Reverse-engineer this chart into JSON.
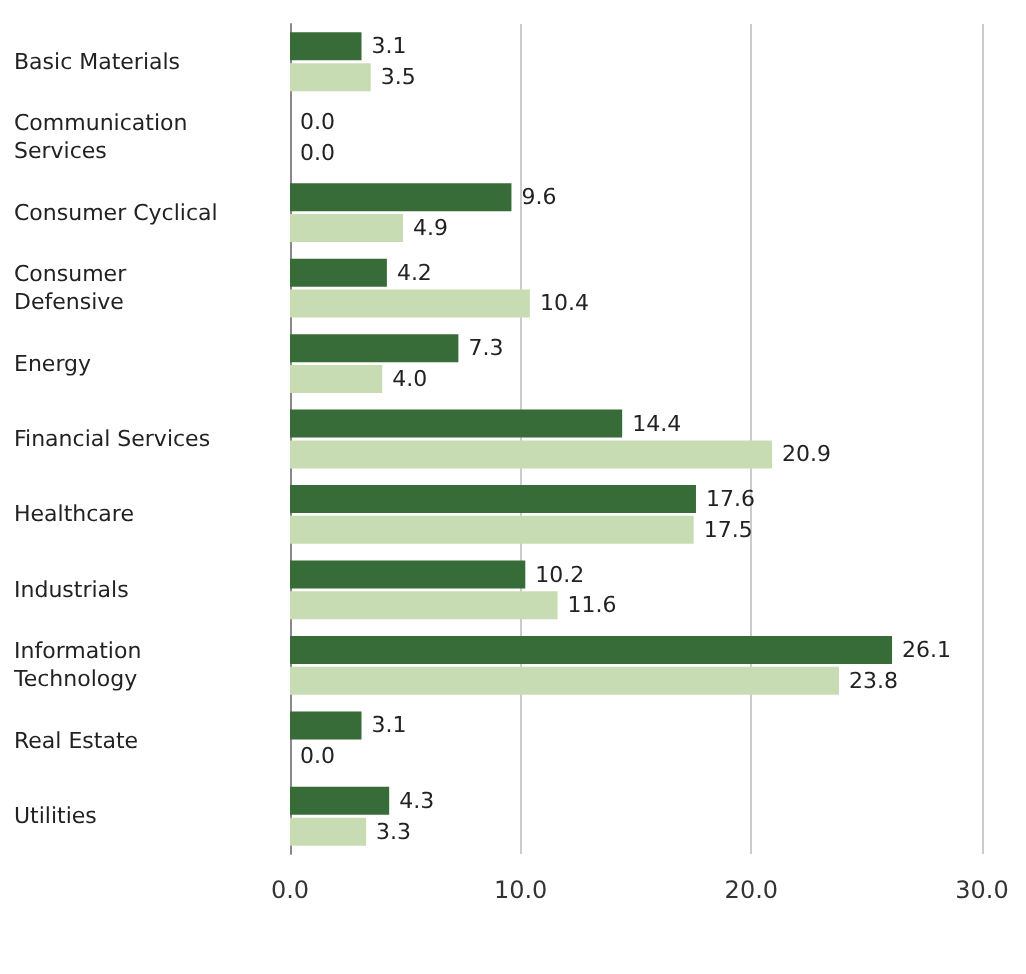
{
  "chart_data": {
    "type": "bar",
    "orientation": "horizontal",
    "categories": [
      "Basic Materials",
      "Communication Services",
      "Consumer Cyclical",
      "Consumer Defensive",
      "Energy",
      "Financial Services",
      "Healthcare",
      "Industrials",
      "Information Technology",
      "Real Estate",
      "Utilities"
    ],
    "series": [
      {
        "color": "#376b37",
        "values": [
          3.1,
          0.0,
          9.6,
          4.2,
          7.3,
          14.4,
          17.6,
          10.2,
          26.1,
          3.1,
          4.3
        ],
        "value_labels": [
          "3.1",
          "0.0",
          "9.6",
          "4.2",
          "7.3",
          "14.4",
          "17.6",
          "10.2",
          "26.1",
          "3.1",
          "4.3"
        ]
      },
      {
        "color": "#c8dcb4",
        "values": [
          3.5,
          0.0,
          4.9,
          10.4,
          4.0,
          20.9,
          17.5,
          11.6,
          23.8,
          0.0,
          3.3
        ],
        "value_labels": [
          "3.5",
          "0.0",
          "4.9",
          "10.4",
          "4.0",
          "20.9",
          "17.5",
          "11.6",
          "23.8",
          "0.0",
          "3.3"
        ]
      }
    ],
    "xlim": [
      0,
      30
    ],
    "xticks": [
      {
        "value": 0,
        "label": "0.0"
      },
      {
        "value": 10,
        "label": "10.0"
      },
      {
        "value": 20,
        "label": "20.0"
      },
      {
        "value": 30,
        "label": "30.0"
      }
    ],
    "grid": "x"
  }
}
